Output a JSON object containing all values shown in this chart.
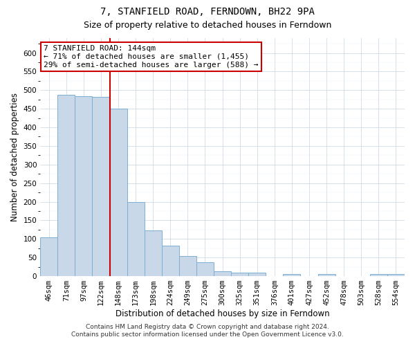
{
  "title": "7, STANFIELD ROAD, FERNDOWN, BH22 9PA",
  "subtitle": "Size of property relative to detached houses in Ferndown",
  "xlabel": "Distribution of detached houses by size in Ferndown",
  "ylabel": "Number of detached properties",
  "categories": [
    "46sqm",
    "71sqm",
    "97sqm",
    "122sqm",
    "148sqm",
    "173sqm",
    "198sqm",
    "224sqm",
    "249sqm",
    "275sqm",
    "300sqm",
    "325sqm",
    "351sqm",
    "376sqm",
    "401sqm",
    "427sqm",
    "452sqm",
    "478sqm",
    "503sqm",
    "528sqm",
    "554sqm"
  ],
  "values": [
    105,
    487,
    484,
    481,
    450,
    200,
    122,
    82,
    55,
    37,
    14,
    9,
    9,
    0,
    5,
    0,
    6,
    0,
    0,
    5,
    6
  ],
  "bar_color": "#c8d8e8",
  "bar_edge_color": "#7bafd4",
  "vline_color": "#cc0000",
  "annotation_text": "7 STANFIELD ROAD: 144sqm\n← 71% of detached houses are smaller (1,455)\n29% of semi-detached houses are larger (588) →",
  "annotation_box_color": "white",
  "annotation_box_edge_color": "#cc0000",
  "ylim": [
    0,
    640
  ],
  "yticks": [
    0,
    50,
    100,
    150,
    200,
    250,
    300,
    350,
    400,
    450,
    500,
    550,
    600
  ],
  "footer_line1": "Contains HM Land Registry data © Crown copyright and database right 2024.",
  "footer_line2": "Contains public sector information licensed under the Open Government Licence v3.0.",
  "title_fontsize": 10,
  "subtitle_fontsize": 9,
  "axis_label_fontsize": 8.5,
  "tick_fontsize": 7.5,
  "annotation_fontsize": 8,
  "footer_fontsize": 6.5
}
